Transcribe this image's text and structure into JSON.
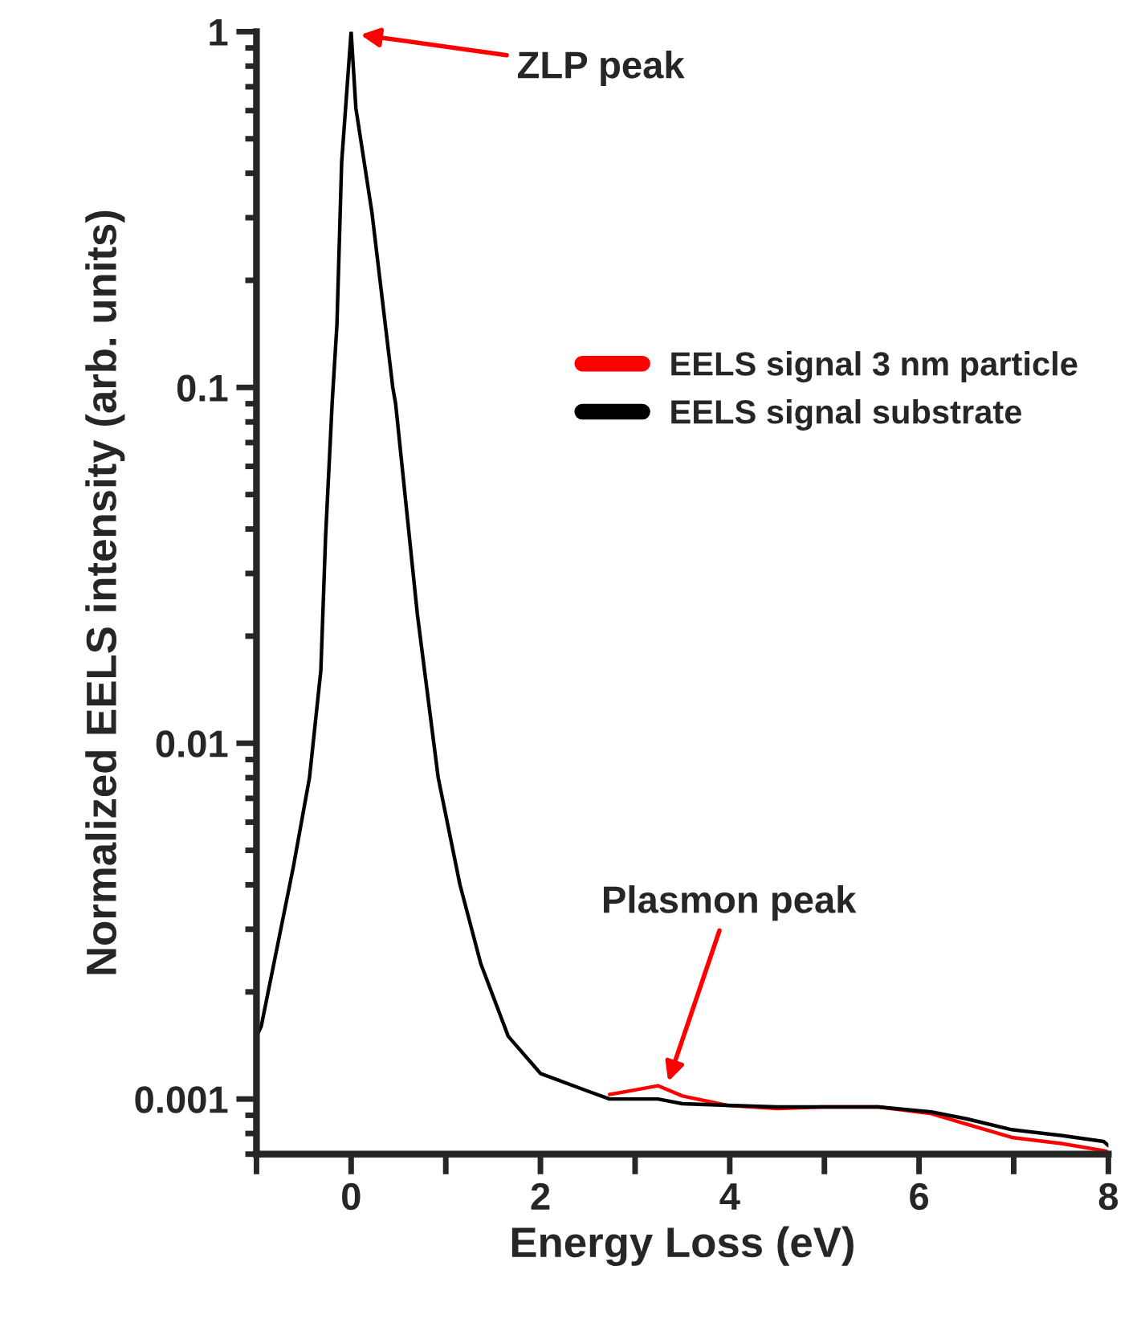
{
  "chart_data": {
    "type": "line",
    "xlabel": "Energy Loss (eV)",
    "ylabel": "Normalized EELS intensity (arb. units)",
    "log": "y",
    "xlim": [
      -1,
      8
    ],
    "ylim": [
      0.0007,
      1
    ],
    "xticks": [
      {
        "value": -1,
        "label": null
      },
      0,
      {
        "value": 1,
        "label": null
      },
      2,
      {
        "value": 3,
        "label": null
      },
      4,
      {
        "value": 5,
        "label": null
      },
      6,
      {
        "value": 7,
        "label": null
      },
      8
    ],
    "yticks": [
      0.001,
      0.01,
      0.1,
      1
    ],
    "grid": false,
    "legend": "right",
    "line_style": "solid",
    "marker": "none",
    "series": [
      {
        "name": "EELS signal 3 nm particle",
        "color": "#ff0000",
        "x": [
          2.73,
          3.0,
          3.24,
          3.5,
          3.97,
          4.5,
          4.99,
          5.57,
          6.13,
          6.5,
          6.98,
          7.5,
          7.95,
          8
        ],
        "values": [
          0.00103,
          0.00106,
          0.00109,
          0.00102,
          0.00096,
          0.00094,
          0.00095,
          0.00095,
          0.00091,
          0.00085,
          0.00078,
          0.00075,
          0.000716,
          0.00071
        ]
      },
      {
        "name": "EELS signal substrate",
        "color": "#000000",
        "x": [
          -1,
          -0.95,
          -0.61,
          -0.44,
          -0.32,
          -0.27,
          -0.2,
          -0.15,
          -0.1,
          0,
          0.05,
          0.22,
          0.44,
          0.47,
          0.7,
          0.92,
          1.15,
          1.37,
          1.66,
          2.0,
          2.51,
          2.73,
          3.0,
          3.24,
          3.5,
          3.97,
          4.5,
          4.99,
          5.57,
          6.13,
          6.5,
          6.98,
          7.5,
          7.95,
          8
        ],
        "values": [
          0.0015,
          0.0016,
          0.0045,
          0.008,
          0.016,
          0.038,
          0.091,
          0.15,
          0.43,
          1,
          0.61,
          0.31,
          0.1,
          0.09,
          0.023,
          0.008,
          0.004,
          0.0024,
          0.0015,
          0.00118,
          0.00105,
          0.001,
          0.001,
          0.001,
          0.00097,
          0.00096,
          0.00095,
          0.00095,
          0.00095,
          0.00092,
          0.00088,
          0.00082,
          0.00079,
          0.00076,
          0.00074
        ]
      }
    ],
    "annotations": [
      {
        "text": "ZLP peak",
        "x": 0.1,
        "y": 0.98
      },
      {
        "text": "Plasmon peak",
        "x": 3.35,
        "y": 0.00112
      }
    ]
  }
}
